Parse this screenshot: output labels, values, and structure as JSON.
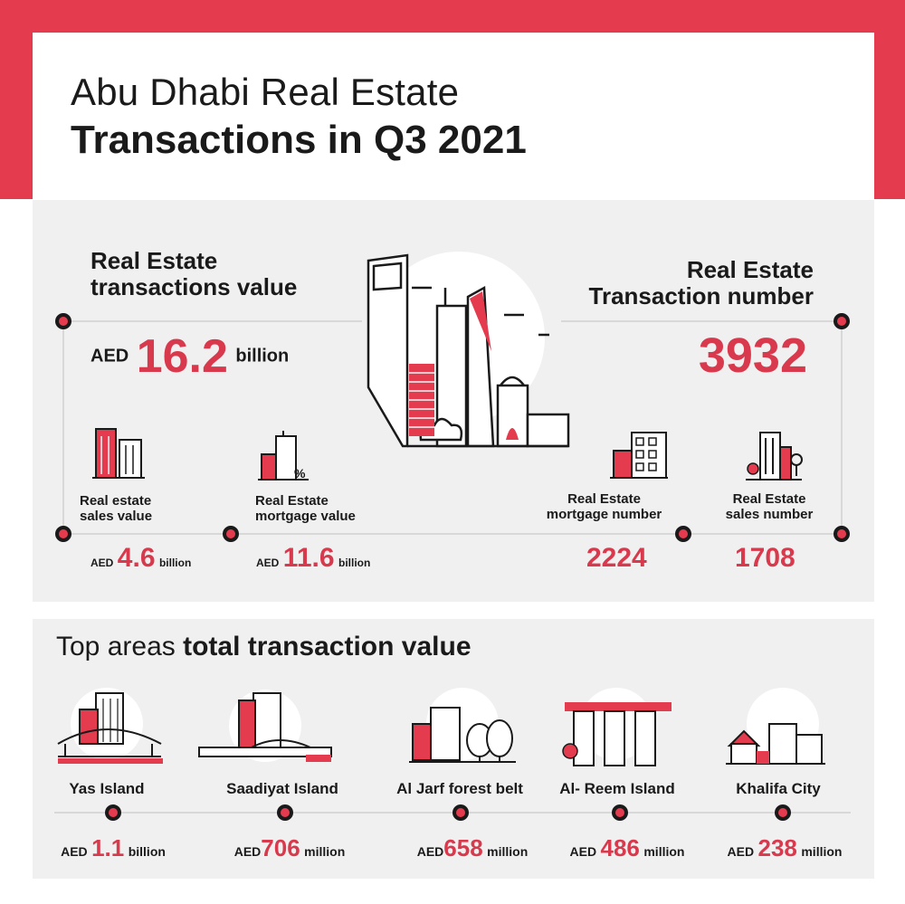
{
  "colors": {
    "accent": "#e53b4e",
    "value_red": "#d8394c",
    "panel": "#f0f0f0",
    "ink": "#1a1a1a"
  },
  "header": {
    "title_line1": "Abu Dhabi Real Estate",
    "title_line2": "Transactions in Q3 2021"
  },
  "left": {
    "heading_line1": "Real Estate",
    "heading_line2": "transactions value",
    "currency": "AED",
    "amount": "16.2",
    "unit": "billion",
    "sales": {
      "label_line1": "Real estate",
      "label_line2": "sales value",
      "currency": "AED",
      "amount": "4.6",
      "unit": "billion",
      "icon": "buildings-icon"
    },
    "mortgage": {
      "label_line1": "Real Estate",
      "label_line2": "mortgage value",
      "currency": "AED",
      "amount": "11.6",
      "unit": "billion",
      "icon": "building-percent-icon"
    }
  },
  "right": {
    "heading_line1": "Real Estate",
    "heading_line2": "Transaction number",
    "number": "3932",
    "mortgage": {
      "label_line1": "Real Estate",
      "label_line2": "mortgage number",
      "number": "2224",
      "icon": "building-calculator-icon"
    },
    "sales": {
      "label_line1": "Real Estate",
      "label_line2": "sales number",
      "number": "1708",
      "icon": "building-key-icon"
    }
  },
  "areas": {
    "heading_regular": "Top areas ",
    "heading_bold": "total transaction value",
    "items": [
      {
        "name": "Yas Island",
        "currency": "AED",
        "amount": "1.1",
        "unit": "billion",
        "icon": "yas-island-icon"
      },
      {
        "name": "Saadiyat Island",
        "currency": "AED",
        "amount": "706",
        "unit": "million",
        "icon": "saadiyat-island-icon"
      },
      {
        "name": "Al Jarf forest belt",
        "currency": "AED",
        "amount": "658",
        "unit": "million",
        "icon": "forest-belt-icon"
      },
      {
        "name": "Al- Reem Island",
        "currency": "AED",
        "amount": "486",
        "unit": "million",
        "icon": "reem-island-icon"
      },
      {
        "name": "Khalifa City",
        "currency": "AED",
        "amount": "238",
        "unit": "million",
        "icon": "khalifa-city-icon"
      }
    ]
  }
}
